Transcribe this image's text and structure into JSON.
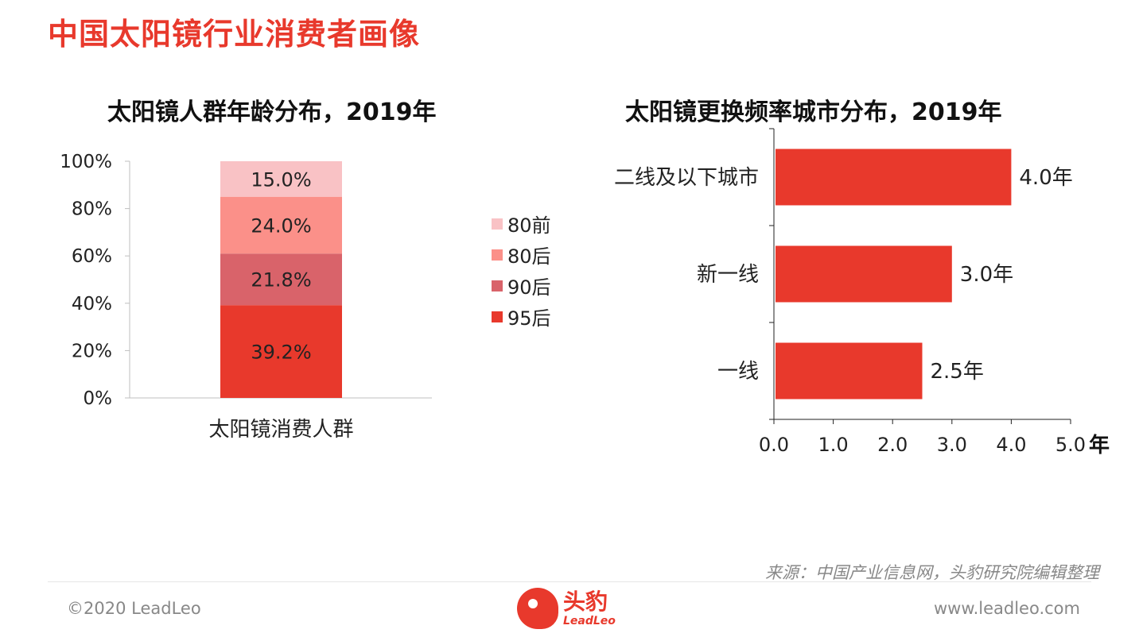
{
  "page": {
    "title": "中国太阳镜行业消费者画像",
    "source": "来源：中国产业信息网，头豹研究院编辑整理",
    "copyright": "©2020 LeadLeo",
    "website": "www.leadleo.com",
    "logo_cn": "头豹",
    "logo_en": "LeadLeo",
    "accent_color": "#e8392c"
  },
  "chart_data": [
    {
      "type": "bar",
      "stacked": true,
      "orientation": "vertical",
      "title": "太阳镜人群年龄分布，2019年",
      "categories": [
        "太阳镜消费人群"
      ],
      "series": [
        {
          "name": "95后",
          "values": [
            39.2
          ],
          "label": "39.2%",
          "color": "#e8392c"
        },
        {
          "name": "90后",
          "values": [
            21.8
          ],
          "label": "21.8%",
          "color": "#d9636a"
        },
        {
          "name": "80后",
          "values": [
            24.0
          ],
          "label": "24.0%",
          "color": "#fb9089"
        },
        {
          "name": "80前",
          "values": [
            15.0
          ],
          "label": "15.0%",
          "color": "#f9c2c5"
        }
      ],
      "legend_order": [
        "80前",
        "80后",
        "90后",
        "95后"
      ],
      "yticks": [
        "0%",
        "20%",
        "40%",
        "60%",
        "80%",
        "100%"
      ],
      "ylim": [
        0,
        100
      ],
      "legend_position": "right",
      "grid": false
    },
    {
      "type": "bar",
      "orientation": "horizontal",
      "title": "太阳镜更换频率城市分布，2019年",
      "categories": [
        "二线及以下城市",
        "新一线",
        "一线"
      ],
      "values": [
        4.0,
        3.0,
        2.5
      ],
      "labels": [
        "4.0年",
        "3.0年",
        "2.5年"
      ],
      "color": "#e8392c",
      "xticks": [
        "0.0",
        "1.0",
        "2.0",
        "3.0",
        "4.0",
        "5.0"
      ],
      "xlim": [
        0,
        5
      ],
      "xunit": "年",
      "grid": false
    }
  ]
}
